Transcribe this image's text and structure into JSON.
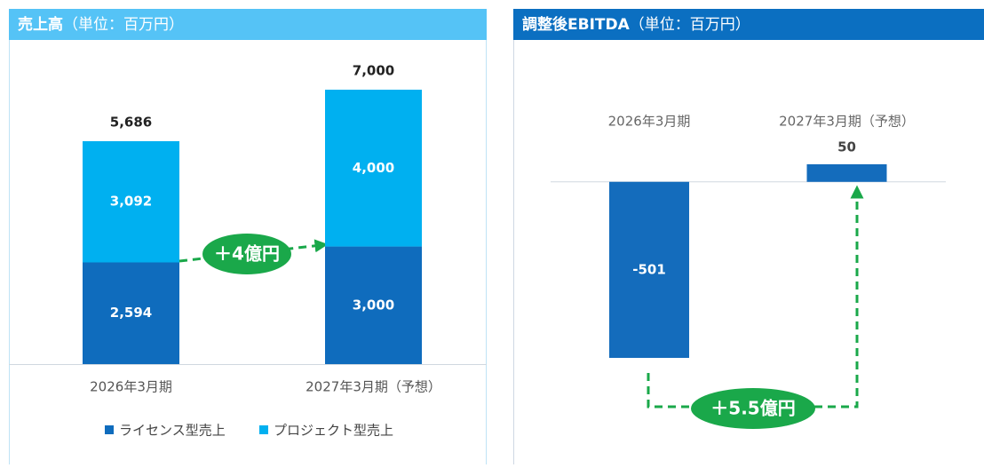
{
  "chart_data": [
    {
      "type": "bar",
      "stacked": true,
      "title": "売上高",
      "unit": "（単位：百万円）",
      "categories": [
        "2026年3月期",
        "2027年3月期（予想）"
      ],
      "series": [
        {
          "name": "ライセンス型売上",
          "color": "#0f6cbd",
          "values": [
            2594,
            3000
          ],
          "value_labels": [
            "2,594",
            "3,000"
          ]
        },
        {
          "name": "プロジェクト型売上",
          "color": "#00b0f0",
          "values": [
            3092,
            4000
          ],
          "value_labels": [
            "3,092",
            "4,000"
          ]
        }
      ],
      "totals": {
        "values": [
          5686,
          7000
        ],
        "value_labels": [
          "5,686",
          "7,000"
        ]
      },
      "annotation": "＋4億円",
      "legend": "bottom",
      "header_color": "#55c3f6"
    },
    {
      "type": "bar",
      "title": "調整後EBITDA",
      "unit": "（単位：百万円）",
      "categories": [
        "2026年3月期",
        "2027年3月期（予想）"
      ],
      "values": [
        -501,
        50
      ],
      "color": "#146cbc",
      "annotation": "＋5.5億円",
      "header_color": "#0b6fc1"
    }
  ]
}
